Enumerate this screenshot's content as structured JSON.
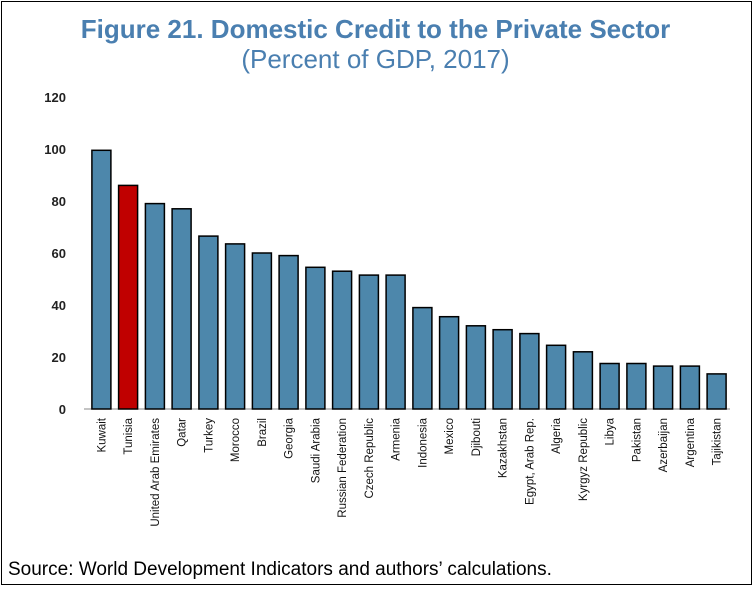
{
  "chart_data": {
    "type": "bar",
    "title": "Figure 21. Domestic Credit to the Private Sector",
    "subtitle": "(Percent of GDP, 2017)",
    "categories": [
      "Kuwait",
      "Tunisia",
      "United Arab Emirates",
      "Qatar",
      "Turkey",
      "Morocco",
      "Brazil",
      "Georgia",
      "Saudi Arabia",
      "Russian Federation",
      "Czech Republic",
      "Armenia",
      "Indonesia",
      "Mexico",
      "Djibouti",
      "Kazakhstan",
      "Egypt, Arab Rep.",
      "Algeria",
      "Kyrgyz Republic",
      "Libya",
      "Pakistan",
      "Azerbaijan",
      "Argentina",
      "Tajikistan"
    ],
    "values": [
      99.5,
      86,
      79,
      77,
      66.5,
      63.5,
      60,
      59,
      54.5,
      53,
      51.5,
      51.5,
      39,
      35.5,
      32,
      30.5,
      29,
      24.5,
      22,
      17.5,
      17.5,
      16.5,
      16.5,
      13.5
    ],
    "highlight": "Tunisia",
    "yticks": [
      0,
      20,
      40,
      60,
      80,
      100,
      120
    ],
    "ylim": [
      0,
      120
    ],
    "xlabel": "",
    "ylabel": "",
    "grid": false,
    "colors": {
      "bar": "#4d87ab",
      "highlight": "#c00000",
      "title": "#4a7fb0",
      "outline": "#000000"
    }
  },
  "source": "Source: World Development Indicators and authors’ calculations."
}
